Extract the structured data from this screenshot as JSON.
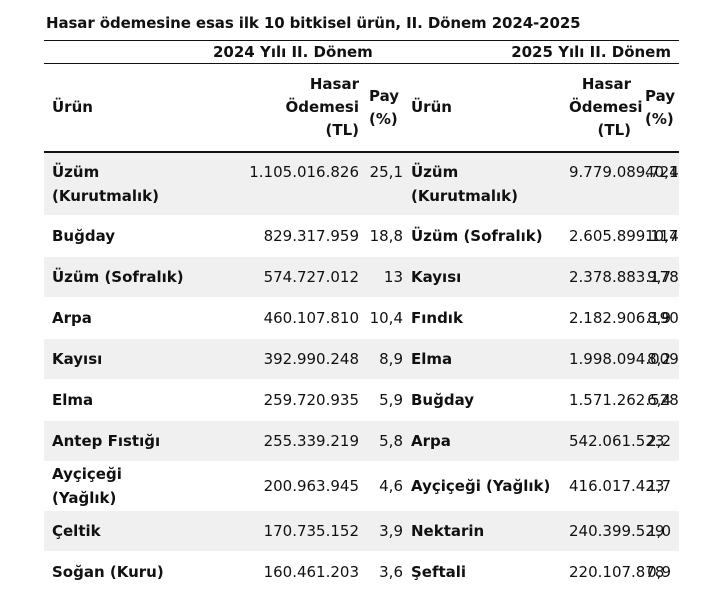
{
  "title": "Hasar ödemesine esas ilk 10 bitkisel ürün, II. Dönem 2024-2025",
  "periods": {
    "left": "2024 Yılı II. Dönem",
    "right": "2025 Yılı II. Dönem"
  },
  "headers": {
    "product": "Ürün",
    "payment_line1": "Hasar",
    "payment_line2": "Ödemesi",
    "payment_line3": "(TL)",
    "share_line1": "Pay",
    "share_line2": "(%)"
  },
  "rows": [
    {
      "p2024": "Üzüm (Kurutmalık)",
      "v2024": "1.105.016.826",
      "s2024": "25,1",
      "p2025": "Üzüm (Kurutmalık)",
      "v2025": "9.779.089.724",
      "s2025": "40,1"
    },
    {
      "p2024": "Buğday",
      "v2024": "829.317.959",
      "s2024": "18,8",
      "p2025": "Üzüm (Sofralık)",
      "v2025": "2.605.899.114",
      "s2025": "10,7"
    },
    {
      "p2024": "Üzüm (Sofralık)",
      "v2024": "574.727.012",
      "s2024": "13",
      "p2025": "Kayısı",
      "v2025": "2.378.883.178",
      "s2025": "9,7"
    },
    {
      "p2024": "Arpa",
      "v2024": "460.107.810",
      "s2024": "10,4",
      "p2025": "Fındık",
      "v2025": "2.182.906.190",
      "s2025": "8,9"
    },
    {
      "p2024": "Kayısı",
      "v2024": "392.990.248",
      "s2024": "8,9",
      "p2025": "Elma",
      "v2025": "1.998.094.009",
      "s2025": "8,2"
    },
    {
      "p2024": "Elma",
      "v2024": "259.720.935",
      "s2024": "5,9",
      "p2025": "Buğday",
      "v2025": "1.571.262.528",
      "s2025": "6,4"
    },
    {
      "p2024": "Antep Fıstığı",
      "v2024": "255.339.219",
      "s2024": "5,8",
      "p2025": "Arpa",
      "v2025": "542.061.523",
      "s2025": "2,2"
    },
    {
      "p2024": "Ayçiçeği (Yağlık)",
      "v2024": "200.963.945",
      "s2024": "4,6",
      "p2025": "Ayçiçeği (Yağlık)",
      "v2025": "416.017.423",
      "s2025": "1,7"
    },
    {
      "p2024": "Çeltik",
      "v2024": "170.735.152",
      "s2024": "3,9",
      "p2025": "Nektarin",
      "v2025": "240.399.529",
      "s2025": "1,0"
    },
    {
      "p2024": "Soğan (Kuru)",
      "v2024": "160.461.203",
      "s2024": "3,6",
      "p2025": "Şeftali",
      "v2025": "220.107.878",
      "s2025": "0,9"
    }
  ]
}
